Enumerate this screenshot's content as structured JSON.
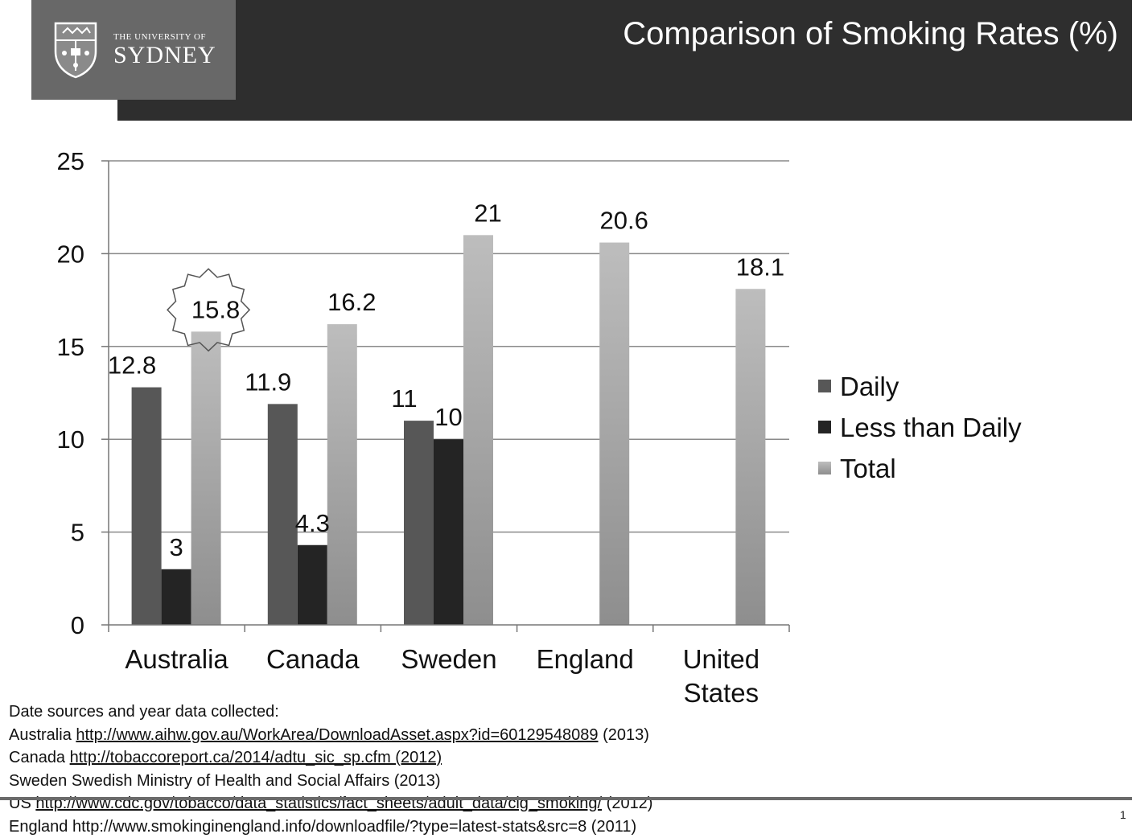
{
  "header": {
    "title": "Comparison of Smoking Rates (%)",
    "logo": {
      "line1": "THE UNIVERSITY OF",
      "line2": "SYDNEY",
      "icon": "university-crest-icon"
    }
  },
  "chart_data": {
    "type": "bar",
    "categories": [
      "Australia",
      "Canada",
      "Sweden",
      "England",
      "United States"
    ],
    "series": [
      {
        "name": "Daily",
        "values": [
          12.8,
          11.9,
          11,
          null,
          null
        ],
        "color": "#575757"
      },
      {
        "name": "Less than Daily",
        "values": [
          3,
          4.3,
          10,
          null,
          null
        ],
        "color": "#242424"
      },
      {
        "name": "Total",
        "values": [
          15.8,
          16.2,
          21,
          20.6,
          18.1
        ],
        "color": "#aeaeae"
      }
    ],
    "ylim": [
      0,
      25
    ],
    "yticks": [
      0,
      5,
      10,
      15,
      20,
      25
    ],
    "grid": true,
    "legend": "right",
    "highlight": {
      "category": "Australia",
      "series": "Total",
      "shape": "starburst"
    }
  },
  "sources": {
    "heading": "Date sources and year data collected:",
    "lines": [
      {
        "label": "Australia",
        "link": "http://www.aihw.gov.au/WorkArea/DownloadAsset.aspx?id=60129548089",
        "year": "(2013)"
      },
      {
        "label": "Canada",
        "link": "http://tobaccoreport.ca/2014/adtu_sic_sp.cfm (2012)",
        "year": ""
      },
      {
        "label": "Sweden",
        "link": "",
        "year": "Swedish Ministry of Health and Social Affairs (2013)"
      },
      {
        "label": "US",
        "link": "http://www.cdc.gov/tobacco/data_statistics/fact_sheets/adult_data/cig_smoking/",
        "year": "(2012)"
      },
      {
        "label": "England",
        "link": "http://www.smokinginengland.info/downloadfile/?type=latest-stats&src=8",
        "year": "(2011)"
      }
    ]
  },
  "footer": {
    "page_number": "1"
  }
}
